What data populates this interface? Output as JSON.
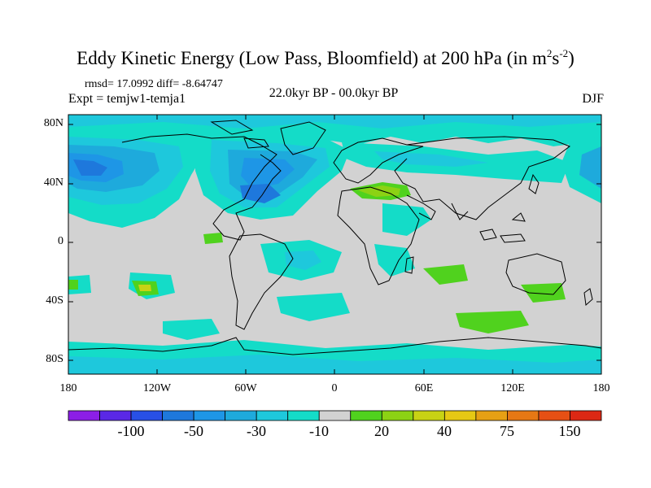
{
  "title": {
    "main": "Eddy Kinetic Energy (Low Pass, Bloomfield) at 200 hPa (in m",
    "sup1": "2",
    "mid": "s",
    "sup2": "-2",
    "end": ")"
  },
  "stats_text": "rmsd= 17.0992 diff= -8.64747",
  "experiment_label": "Expt = temjw1-temja1",
  "period_label": "22.0kyr BP - 00.0kyr BP",
  "season_label": "DJF",
  "axes": {
    "lat_labels": [
      "80N",
      "40N",
      "0",
      "40S",
      "80S"
    ],
    "lon_labels": [
      "180",
      "120W",
      "60W",
      "0",
      "60E",
      "120E",
      "180"
    ]
  },
  "colorbar": {
    "colors": [
      "#8c1ee6",
      "#5a28e6",
      "#2850e6",
      "#1e78dc",
      "#1e96e6",
      "#1eaadc",
      "#1ec8dc",
      "#14dcc8",
      "#d2d2d2",
      "#50d21e",
      "#8cd214",
      "#c8d214",
      "#e6c814",
      "#e6a014",
      "#e67814",
      "#e65014",
      "#dc2814"
    ],
    "labels": [
      "-100",
      "-50",
      "-30",
      "-10",
      "20",
      "40",
      "75",
      "150"
    ]
  }
}
